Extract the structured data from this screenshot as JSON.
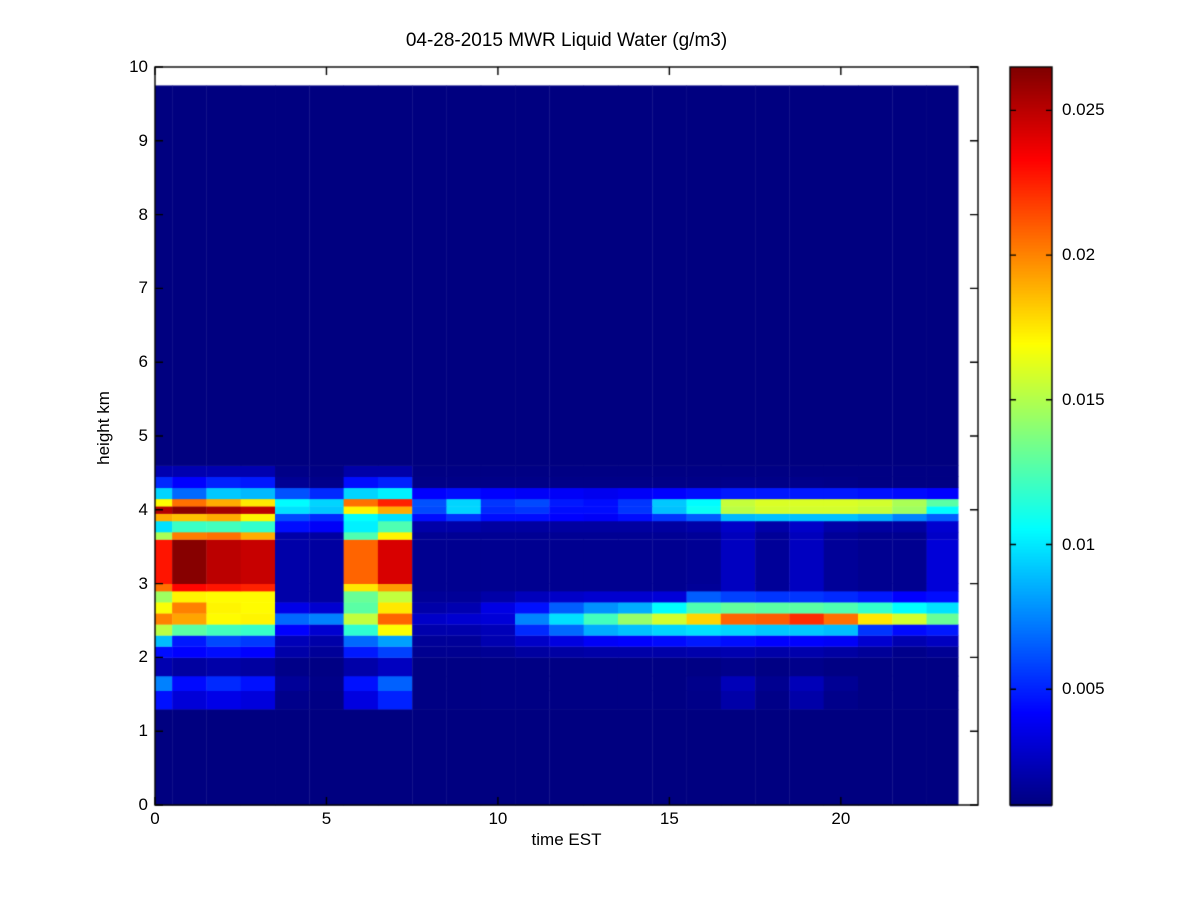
{
  "figure": {
    "background": "#ffffff",
    "text_color": "#000000"
  },
  "chart_data": {
    "type": "heatmap",
    "title": "04-28-2015 MWR Liquid Water (g/m3)",
    "xlabel": "time EST",
    "ylabel": "height km",
    "units": "g/m3",
    "colormap": "jet",
    "grid": false,
    "xlim": [
      0,
      24
    ],
    "ylim": [
      0,
      10
    ],
    "clim": [
      0.001,
      0.0265
    ],
    "xticks": [
      0,
      5,
      10,
      15,
      20
    ],
    "xtick_labels": [
      "0",
      "5",
      "10",
      "15",
      "20"
    ],
    "yticks": [
      0,
      1,
      2,
      3,
      4,
      5,
      6,
      7,
      8,
      9,
      10
    ],
    "ytick_labels": [
      "0",
      "1",
      "2",
      "3",
      "4",
      "5",
      "6",
      "7",
      "8",
      "9",
      "10"
    ],
    "colorbar": {
      "position": "right",
      "ticks": [
        0.005,
        0.01,
        0.015,
        0.02,
        0.025
      ],
      "labels": [
        "0.005",
        "0.01",
        "0.015",
        "0.02",
        "0.025"
      ]
    },
    "time_bin_edges": [
      0,
      0.5,
      1.5,
      2.5,
      3.5,
      4.5,
      5.5,
      6.5,
      7.5,
      8.5,
      9.5,
      10.5,
      11.5,
      12.5,
      13.5,
      14.5,
      15.5,
      16.5,
      17.5,
      18.5,
      19.5,
      20.5,
      21.5,
      22.5,
      23.42
    ],
    "height_bands": [
      {
        "h0": 0.0,
        "h1": 1.3,
        "values": [
          0.001,
          0.001,
          0.001,
          0.001,
          0.001,
          0.001,
          0.001,
          0.001,
          0.001,
          0.001,
          0.001,
          0.001,
          0.001,
          0.001,
          0.001,
          0.001,
          0.001,
          0.001,
          0.001,
          0.001,
          0.001,
          0.001,
          0.001,
          0.001
        ]
      },
      {
        "h0": 1.3,
        "h1": 1.55,
        "values": [
          0.0046,
          0.0032,
          0.0036,
          0.0033,
          0.0013,
          0.0011,
          0.0034,
          0.005,
          0.0011,
          0.0011,
          0.0011,
          0.0011,
          0.0011,
          0.0011,
          0.0011,
          0.0011,
          0.0012,
          0.002,
          0.0012,
          0.002,
          0.0013,
          0.0011,
          0.0011,
          0.0011
        ]
      },
      {
        "h0": 1.55,
        "h1": 1.75,
        "values": [
          0.0074,
          0.0044,
          0.0052,
          0.0046,
          0.0016,
          0.0012,
          0.0046,
          0.0066,
          0.0011,
          0.0011,
          0.0011,
          0.0011,
          0.0011,
          0.0011,
          0.0011,
          0.0011,
          0.0013,
          0.0024,
          0.0014,
          0.0024,
          0.0015,
          0.0011,
          0.0011,
          0.0011
        ]
      },
      {
        "h0": 1.75,
        "h1": 2.0,
        "values": [
          0.0022,
          0.0018,
          0.002,
          0.0018,
          0.0012,
          0.0011,
          0.002,
          0.0026,
          0.0011,
          0.0011,
          0.0011,
          0.0011,
          0.0011,
          0.0011,
          0.0011,
          0.0011,
          0.0011,
          0.0013,
          0.0011,
          0.0013,
          0.0011,
          0.0011,
          0.0011,
          0.0011
        ]
      },
      {
        "h0": 2.0,
        "h1": 2.15,
        "values": [
          0.0045,
          0.0042,
          0.0045,
          0.0042,
          0.002,
          0.0016,
          0.0048,
          0.0058,
          0.0014,
          0.0014,
          0.0015,
          0.0018,
          0.0019,
          0.002,
          0.002,
          0.002,
          0.0021,
          0.0022,
          0.002,
          0.0021,
          0.0019,
          0.0016,
          0.0013,
          0.0015
        ]
      },
      {
        "h0": 2.15,
        "h1": 2.3,
        "values": [
          0.0089,
          0.0048,
          0.006,
          0.0056,
          0.0024,
          0.002,
          0.0068,
          0.0082,
          0.0016,
          0.0016,
          0.0022,
          0.0028,
          0.0034,
          0.004,
          0.0042,
          0.0044,
          0.0048,
          0.0045,
          0.0042,
          0.0042,
          0.004,
          0.003,
          0.0022,
          0.0026
        ]
      },
      {
        "h0": 2.3,
        "h1": 2.45,
        "values": [
          0.0152,
          0.0128,
          0.0122,
          0.0119,
          0.0042,
          0.003,
          0.0117,
          0.0169,
          0.0021,
          0.0021,
          0.0024,
          0.0052,
          0.0068,
          0.0085,
          0.009,
          0.0095,
          0.0098,
          0.0095,
          0.0092,
          0.0092,
          0.0089,
          0.0055,
          0.0044,
          0.0048
        ]
      },
      {
        "h0": 2.45,
        "h1": 2.6,
        "values": [
          0.0201,
          0.0192,
          0.017,
          0.0172,
          0.0068,
          0.0074,
          0.0154,
          0.0208,
          0.0028,
          0.003,
          0.0032,
          0.0075,
          0.0098,
          0.0122,
          0.0143,
          0.0158,
          0.018,
          0.0208,
          0.021,
          0.0222,
          0.0205,
          0.0175,
          0.0158,
          0.0132
        ]
      },
      {
        "h0": 2.6,
        "h1": 2.75,
        "values": [
          0.0168,
          0.0201,
          0.0172,
          0.017,
          0.0036,
          0.003,
          0.0128,
          0.0175,
          0.002,
          0.0022,
          0.0035,
          0.0046,
          0.0065,
          0.0078,
          0.0085,
          0.0105,
          0.0125,
          0.013,
          0.0128,
          0.0128,
          0.0125,
          0.0118,
          0.0105,
          0.0098
        ]
      },
      {
        "h0": 2.75,
        "h1": 2.9,
        "values": [
          0.0145,
          0.0172,
          0.017,
          0.017,
          0.002,
          0.0018,
          0.0132,
          0.0154,
          0.0016,
          0.0016,
          0.002,
          0.0025,
          0.0028,
          0.003,
          0.003,
          0.0032,
          0.0065,
          0.0058,
          0.0055,
          0.0055,
          0.0052,
          0.0048,
          0.0042,
          0.0045
        ]
      },
      {
        "h0": 2.9,
        "h1": 3.0,
        "values": [
          0.0205,
          0.0232,
          0.0228,
          0.0225,
          0.002,
          0.0018,
          0.0175,
          0.0195,
          0.0014,
          0.0014,
          0.0014,
          0.0014,
          0.0014,
          0.0014,
          0.0014,
          0.0014,
          0.0016,
          0.0026,
          0.0016,
          0.0026,
          0.0016,
          0.0014,
          0.0014,
          0.0032
        ]
      },
      {
        "h0": 3.0,
        "h1": 3.6,
        "values": [
          0.0228,
          0.0263,
          0.025,
          0.0247,
          0.002,
          0.0018,
          0.0208,
          0.0243,
          0.0014,
          0.0014,
          0.0014,
          0.0014,
          0.0014,
          0.0014,
          0.0014,
          0.0014,
          0.0015,
          0.0026,
          0.0016,
          0.0026,
          0.0016,
          0.0014,
          0.0014,
          0.0032
        ]
      },
      {
        "h0": 3.6,
        "h1": 3.7,
        "values": [
          0.0148,
          0.0202,
          0.0205,
          0.019,
          0.002,
          0.0018,
          0.0125,
          0.0172,
          0.0015,
          0.0015,
          0.0015,
          0.0015,
          0.0015,
          0.0015,
          0.0015,
          0.0015,
          0.0016,
          0.0025,
          0.0016,
          0.0025,
          0.0016,
          0.0014,
          0.0014,
          0.0028
        ]
      },
      {
        "h0": 3.7,
        "h1": 3.85,
        "values": [
          0.0098,
          0.012,
          0.0122,
          0.0118,
          0.0045,
          0.004,
          0.0102,
          0.0125,
          0.002,
          0.002,
          0.0018,
          0.0018,
          0.0018,
          0.0018,
          0.0018,
          0.0018,
          0.002,
          0.0028,
          0.002,
          0.0028,
          0.002,
          0.0018,
          0.0018,
          0.003
        ]
      },
      {
        "h0": 3.85,
        "h1": 3.95,
        "values": [
          0.019,
          0.0185,
          0.019,
          0.0172,
          0.006,
          0.0052,
          0.0106,
          0.0098,
          0.0045,
          0.0055,
          0.0045,
          0.0045,
          0.0042,
          0.004,
          0.0045,
          0.0055,
          0.0065,
          0.0088,
          0.009,
          0.009,
          0.009,
          0.0085,
          0.0075,
          0.0065
        ]
      },
      {
        "h0": 3.95,
        "h1": 4.05,
        "values": [
          0.0252,
          0.0262,
          0.0256,
          0.025,
          0.0098,
          0.0092,
          0.0172,
          0.019,
          0.006,
          0.0095,
          0.0052,
          0.0055,
          0.0045,
          0.0045,
          0.0055,
          0.009,
          0.0108,
          0.0152,
          0.0158,
          0.0158,
          0.0158,
          0.0155,
          0.0145,
          0.0105
        ]
      },
      {
        "h0": 4.05,
        "h1": 4.15,
        "values": [
          0.017,
          0.0205,
          0.019,
          0.0175,
          0.0105,
          0.0095,
          0.0205,
          0.0225,
          0.0062,
          0.0095,
          0.0055,
          0.006,
          0.0048,
          0.0045,
          0.0055,
          0.0092,
          0.0105,
          0.0155,
          0.016,
          0.016,
          0.016,
          0.0158,
          0.0148,
          0.0128
        ]
      },
      {
        "h0": 4.15,
        "h1": 4.3,
        "values": [
          0.0095,
          0.0068,
          0.0092,
          0.0088,
          0.0062,
          0.0052,
          0.0095,
          0.0102,
          0.0042,
          0.0045,
          0.0042,
          0.004,
          0.004,
          0.0038,
          0.004,
          0.0042,
          0.0045,
          0.0048,
          0.0048,
          0.0048,
          0.0048,
          0.0046,
          0.0044,
          0.0042
        ]
      },
      {
        "h0": 4.3,
        "h1": 4.45,
        "values": [
          0.0052,
          0.0042,
          0.005,
          0.0048,
          0.0015,
          0.0013,
          0.0045,
          0.005,
          0.0012,
          0.0012,
          0.0012,
          0.0012,
          0.0012,
          0.0012,
          0.0012,
          0.0012,
          0.0012,
          0.0013,
          0.0012,
          0.0013,
          0.0012,
          0.0011,
          0.0011,
          0.0011
        ]
      },
      {
        "h0": 4.45,
        "h1": 4.6,
        "values": [
          0.0022,
          0.0022,
          0.0022,
          0.0022,
          0.0012,
          0.0011,
          0.002,
          0.002,
          0.0011,
          0.0011,
          0.0011,
          0.0011,
          0.0011,
          0.0011,
          0.0011,
          0.0011,
          0.0011,
          0.0011,
          0.0011,
          0.0011,
          0.0011,
          0.0011,
          0.0011,
          0.0011
        ]
      },
      {
        "h0": 4.6,
        "h1": 9.75,
        "values": [
          0.001,
          0.001,
          0.001,
          0.001,
          0.001,
          0.001,
          0.001,
          0.001,
          0.001,
          0.001,
          0.001,
          0.001,
          0.001,
          0.001,
          0.001,
          0.001,
          0.001,
          0.001,
          0.001,
          0.001,
          0.001,
          0.001,
          0.001,
          0.001
        ]
      }
    ]
  }
}
